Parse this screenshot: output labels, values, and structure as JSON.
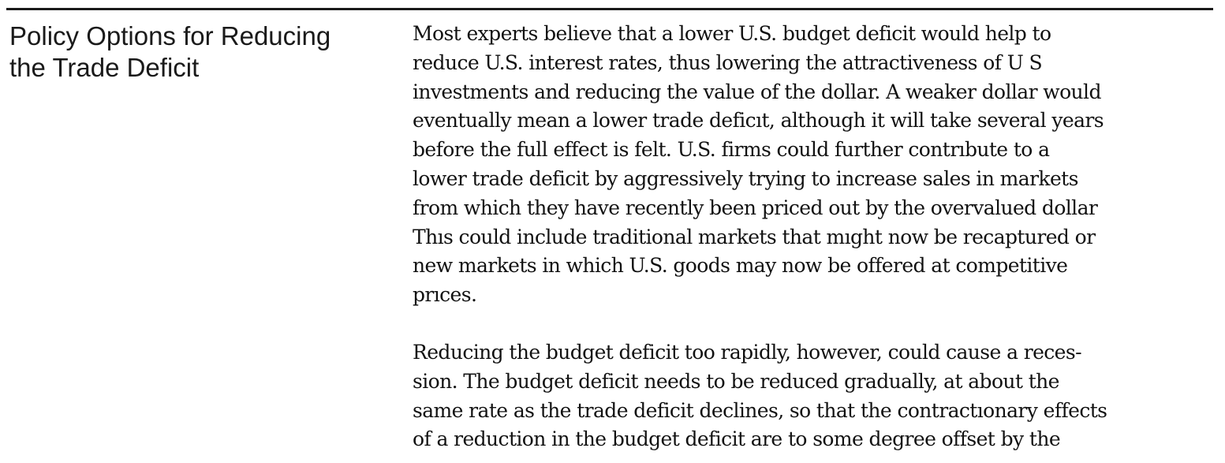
{
  "heading": {
    "lines": [
      "Policy Options for Reducing",
      "the Trade Deficit"
    ]
  },
  "paragraphs": [
    {
      "lines": [
        "Most experts believe that a lower U.S. budget deficit would help to",
        "reduce U.S. interest rates, thus lowering the attractiveness of U S",
        "investments and reducing the value of the dollar. A weaker dollar would",
        "eventually mean a lower trade deficıt, although it will take several years",
        "before the full effect is felt. U.S. firms could further contrıbute to a",
        "lower trade deficit by aggressively trying to increase sales in markets",
        "from which they have recently been priced out by the overvalued dollar",
        "Thıs could include traditional markets that mıght now be recaptured or",
        "new markets in which U.S. goods may now be offered at competitive",
        "prıces."
      ]
    },
    {
      "lines": [
        "Reducing the budget deficit too rapidly, however, could cause a reces-",
        "sion. The budget deficit needs to be reduced gradually, at about the",
        "same rate as the trade deficit declines, so that the contractıonary effects",
        "of a reduction in the budget deficit are to some degree offset by the"
      ]
    }
  ]
}
